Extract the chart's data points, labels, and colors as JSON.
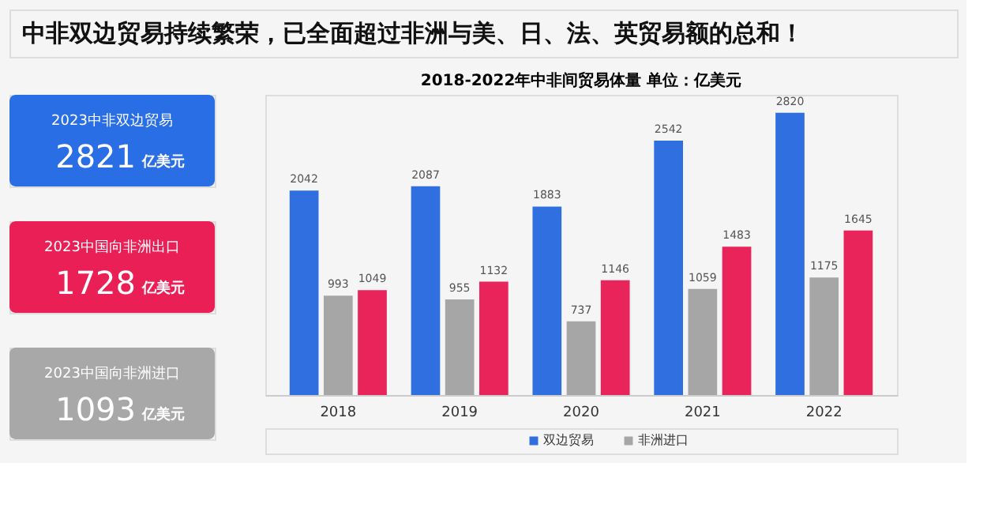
{
  "chart_data": [
    {
      "type": "other",
      "title": "中非双边贸易持续繁荣，已全面超过非洲与美、日、法、英贸易额的总和！",
      "categories": [
        "2023中非双边贸易",
        "2023中国向非洲出口",
        "2023中国向非洲进口"
      ],
      "values": [
        2821,
        1728,
        1093
      ],
      "colors": [
        "#2a6ee6",
        "#ea1f55",
        "#a8a8a8"
      ],
      "annotations": [
        "亿美元",
        "亿美元",
        "亿美元"
      ],
      "data_labels": true
    },
    {
      "type": "bar",
      "title": "2018-2022年中非间贸易体量 单位：亿美元",
      "categories": [
        "2018",
        "2019",
        "2020",
        "2021",
        "2022"
      ],
      "series": [
        {
          "name": "双边贸易",
          "color": "#2f6fe0",
          "values": [
            2042,
            2087,
            1883,
            2542,
            2820
          ]
        },
        {
          "name": "非洲进口",
          "color": "#a6a6a6",
          "values": [
            993,
            955,
            737,
            1059,
            1175
          ]
        },
        {
          "color": "#e8245a",
          "values": [
            1049,
            1132,
            1146,
            1483,
            1645
          ]
        }
      ],
      "data_labels": true,
      "legend": "bottom",
      "grid": false
    }
  ]
}
